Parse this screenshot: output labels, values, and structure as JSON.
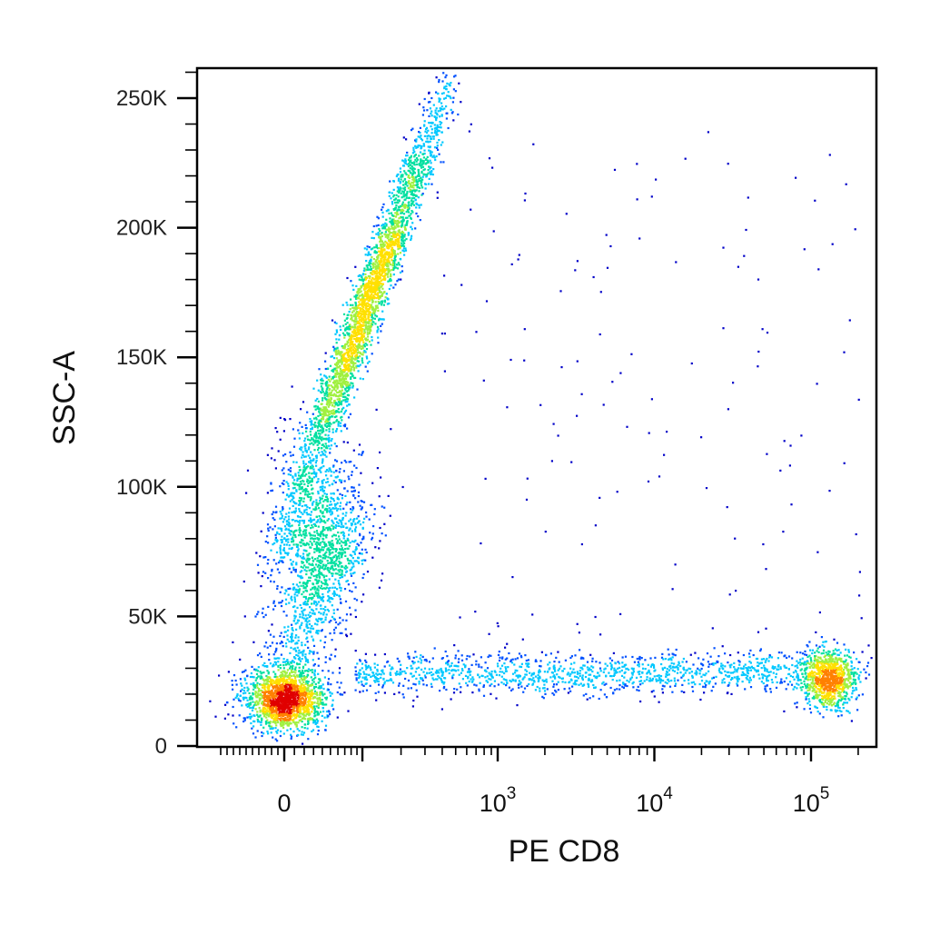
{
  "chart_data": {
    "type": "scatter",
    "title": "",
    "xlabel": "PE CD8",
    "ylabel": "SSC-A",
    "x_scale": "biexponential",
    "x_ticks": [
      {
        "value": 0,
        "base": "0",
        "exp": ""
      },
      {
        "value": 1000,
        "base": "10",
        "exp": "3"
      },
      {
        "value": 10000,
        "base": "10",
        "exp": "4"
      },
      {
        "value": 100000,
        "base": "10",
        "exp": "5"
      }
    ],
    "y_ticks": [
      {
        "value": 0,
        "label": "0"
      },
      {
        "value": 50000,
        "label": "50K"
      },
      {
        "value": 100000,
        "label": "100K"
      },
      {
        "value": 150000,
        "label": "150K"
      },
      {
        "value": 200000,
        "label": "200K"
      },
      {
        "value": 250000,
        "label": "250K"
      }
    ],
    "ylim": [
      0,
      262144
    ],
    "xlim": [
      -200,
      262144
    ],
    "grid": false,
    "legend": "none",
    "color_scale": [
      "#0000c8",
      "#0050ff",
      "#00c8ff",
      "#00e0a0",
      "#a0f040",
      "#ffe000",
      "#ff8000",
      "#e00000"
    ],
    "populations": [
      {
        "center_x": 0,
        "center_y": 19000,
        "spread_x": "narrow",
        "spread_y": 8000,
        "density": "very high"
      },
      {
        "center_x": 70,
        "center_y": 85000,
        "spread_x": "narrow",
        "spread_y": 20000,
        "density": "medium"
      },
      {
        "center_x": 200,
        "center_y": 175000,
        "spread_x": "narrow",
        "spread_y": 35000,
        "density": "high"
      },
      {
        "center_x": 120000,
        "center_y": 25000,
        "spread_x": "narrow",
        "spread_y": 8000,
        "density": "high"
      },
      {
        "center_x": 4000,
        "center_y": 27000,
        "spread_x": "wide",
        "spread_y": 6000,
        "density": "low"
      }
    ]
  }
}
